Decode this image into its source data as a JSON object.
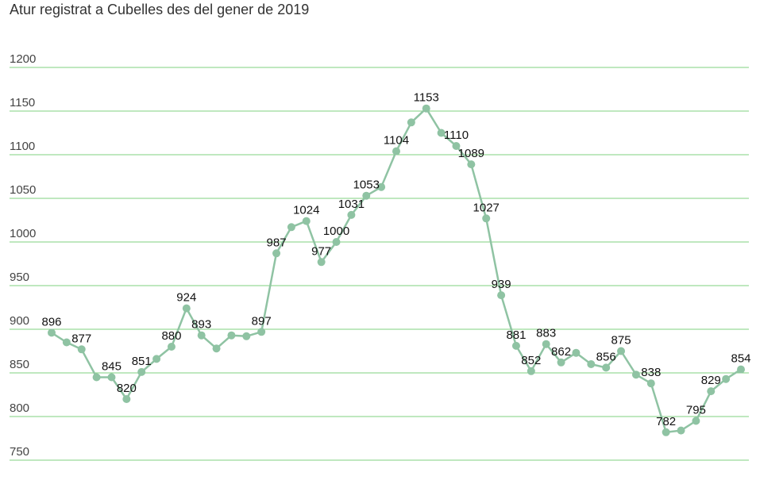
{
  "chart_data": {
    "type": "line",
    "title": "Atur registrat a Cubelles des del gener de 2019",
    "xlabel": "",
    "ylabel": "",
    "ylim": [
      750,
      1200
    ],
    "yticks": [
      1200,
      1150,
      1100,
      1050,
      1000,
      950,
      900,
      850,
      800,
      750
    ],
    "grid": true,
    "legend": "none",
    "colors": {
      "line": "#8fc3a3",
      "grid": "#7fd07f",
      "text": "#111111",
      "tick": "#444444"
    },
    "values": [
      896,
      885,
      877,
      845,
      845,
      820,
      851,
      866,
      880,
      924,
      893,
      878,
      893,
      892,
      897,
      987,
      1017,
      1024,
      977,
      1000,
      1031,
      1053,
      1063,
      1104,
      1137,
      1153,
      1125,
      1110,
      1089,
      1027,
      939,
      881,
      852,
      883,
      862,
      873,
      860,
      856,
      875,
      848,
      838,
      782,
      784,
      795,
      829,
      843,
      854
    ],
    "labels": [
      "896",
      "",
      "877",
      "",
      "845",
      "820",
      "851",
      "",
      "880",
      "924",
      "893",
      "",
      "",
      "",
      "897",
      "987",
      "",
      "1024",
      "977",
      "1000",
      "1031",
      "1053",
      "",
      "1104",
      "",
      "1153",
      "",
      "1110",
      "1089",
      "1027",
      "939",
      "881",
      "852",
      "883",
      "862",
      "",
      "",
      "856",
      "875",
      "",
      "838",
      "782",
      "",
      "795",
      "829",
      "",
      "854"
    ]
  }
}
